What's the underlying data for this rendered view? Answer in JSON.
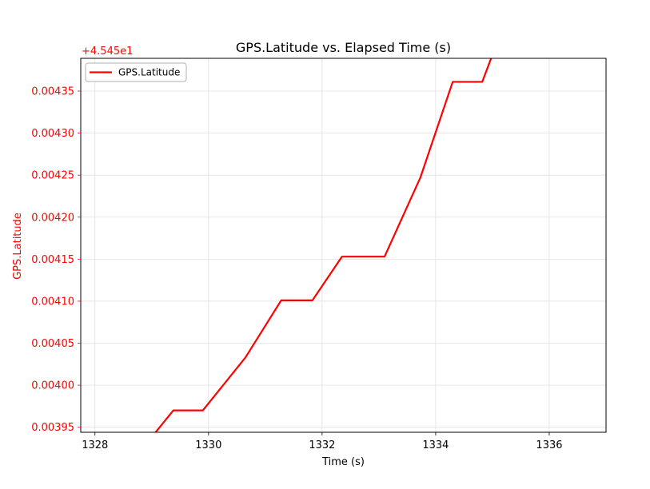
{
  "chart_data": {
    "type": "line",
    "title": "GPS.Latitude vs. Elapsed Time (s)",
    "xlabel": "Time (s)",
    "ylabel": "GPS.Latitude",
    "offset_label": "+4.545e1",
    "xlim": [
      1327.75,
      1337.0
    ],
    "ylim": [
      0.003944,
      0.004389
    ],
    "xticks": [
      1328,
      1330,
      1332,
      1334,
      1336
    ],
    "yticks": [
      0.00395,
      0.004,
      0.00405,
      0.0041,
      0.00415,
      0.0042,
      0.00425,
      0.0043,
      0.00435
    ],
    "ytick_labels": [
      "0.00395",
      "0.00400",
      "0.00405",
      "0.00410",
      "0.00415",
      "0.00420",
      "0.00425",
      "0.00430",
      "0.00435"
    ],
    "grid": true,
    "legend_position": "top-left",
    "series": [
      {
        "name": "GPS.Latitude",
        "color": "#ff0000",
        "x": [
          1328.9,
          1329.38,
          1329.9,
          1330.65,
          1331.28,
          1331.83,
          1332.35,
          1333.1,
          1333.73,
          1334.3,
          1334.82,
          1335.15
        ],
        "y": [
          0.00393,
          0.00397,
          0.00397,
          0.004033,
          0.004101,
          0.004101,
          0.004153,
          0.004153,
          0.004247,
          0.004361,
          0.004361,
          0.00442
        ]
      }
    ]
  }
}
